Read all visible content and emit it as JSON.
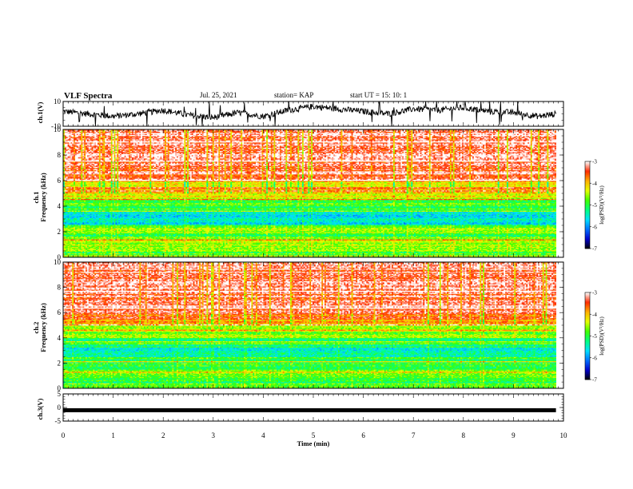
{
  "header": {
    "title": "VLF Spectra",
    "date": "Jul. 25, 2021",
    "station": "station= KAP",
    "start": "start  UT =   15: 10: 1"
  },
  "colors": {
    "colormap": [
      "#000000",
      "#0000cc",
      "#0070ff",
      "#00e0ff",
      "#00ff80",
      "#40ff00",
      "#e6ff00",
      "#ffb000",
      "#ff2a00",
      "#ffffff"
    ]
  },
  "chart_data": [
    {
      "type": "line",
      "panel": "ch1-waveform",
      "ylabel": "ch.1(V)",
      "ylim": [
        -10,
        10
      ],
      "yticks": [
        "10",
        "-10"
      ],
      "xlim": [
        0,
        10
      ],
      "x": [
        0,
        0.5,
        1,
        1.5,
        2,
        2.5,
        3,
        3.5,
        4,
        4.5,
        5,
        5.5,
        6,
        6.5,
        7,
        7.5,
        8,
        8.5,
        9,
        9.5,
        9.85
      ],
      "values": [
        2,
        0,
        -2,
        0,
        3,
        -1,
        -3,
        1,
        -2,
        3,
        6,
        4,
        2,
        0,
        4,
        3,
        5,
        2,
        1,
        -2,
        0
      ]
    },
    {
      "type": "heatmap",
      "panel": "ch1-spectrogram",
      "ylabel": "ch.1\nFrequency (kHz)",
      "ylabel_top": "ch.1",
      "ylabel_bottom": "Frequency  (kHz)",
      "ylim": [
        0,
        10
      ],
      "yticks": [
        "0",
        "2",
        "4",
        "6",
        "8",
        "10"
      ],
      "xlim": [
        0,
        9.85
      ],
      "bands_khz": [
        0,
        0.5,
        1,
        1.5,
        2,
        2.5,
        3,
        3.5,
        4,
        4.5,
        5,
        5.5,
        6,
        6.5,
        7,
        7.5,
        8,
        8.5,
        9,
        9.5
      ],
      "band_log_psd": [
        -4.9,
        -4.6,
        -4.5,
        -5.0,
        -4.6,
        -5.5,
        -5.6,
        -5.3,
        -4.8,
        -4.5,
        -3.8,
        -4.1,
        -3.4,
        -3.3,
        -3.3,
        -3.2,
        -3.2,
        -3.2,
        -3.2,
        -3.2
      ],
      "colorbar": {
        "label": "log(PSD)(V²/Hz)",
        "range": [
          -7,
          -3
        ],
        "ticks": [
          "-3",
          "-4",
          "-5",
          "-6",
          "-7"
        ]
      }
    },
    {
      "type": "heatmap",
      "panel": "ch2-spectrogram",
      "ylabel_top": "ch.2",
      "ylabel_bottom": "Frequency  (kHz)",
      "ylim": [
        0,
        10
      ],
      "yticks": [
        "0",
        "2",
        "4",
        "6",
        "8",
        "10"
      ],
      "xlim": [
        0,
        9.85
      ],
      "bands_khz": [
        0,
        0.5,
        1,
        1.5,
        2,
        2.5,
        3,
        3.5,
        4,
        4.5,
        5,
        5.5,
        6,
        6.5,
        7,
        7.5,
        8,
        8.5,
        9,
        9.5
      ],
      "band_log_psd": [
        -5.0,
        -4.8,
        -4.6,
        -4.9,
        -5.0,
        -5.4,
        -5.4,
        -5.1,
        -4.7,
        -4.4,
        -3.8,
        -3.6,
        -3.4,
        -3.3,
        -3.3,
        -3.2,
        -3.2,
        -3.2,
        -3.2,
        -3.2
      ],
      "colorbar": {
        "label": "log(PSD)(V²/Hz)",
        "range": [
          -7,
          -3
        ],
        "ticks": [
          "-3",
          "-4",
          "-5",
          "-6",
          "-7"
        ]
      }
    },
    {
      "type": "line",
      "panel": "ch3-waveform",
      "ylabel": "ch.3(V)",
      "ylim": [
        -5,
        5
      ],
      "yticks": [
        "5",
        "0",
        "-5"
      ],
      "xlim": [
        0,
        10
      ],
      "x": [
        0,
        9.85
      ],
      "values": [
        -1,
        -1
      ]
    }
  ],
  "xaxis": {
    "label": "Time  (min)",
    "range": [
      0,
      10
    ],
    "ticks": [
      "0",
      "1",
      "2",
      "3",
      "4",
      "5",
      "6",
      "7",
      "8",
      "9",
      "10"
    ]
  }
}
